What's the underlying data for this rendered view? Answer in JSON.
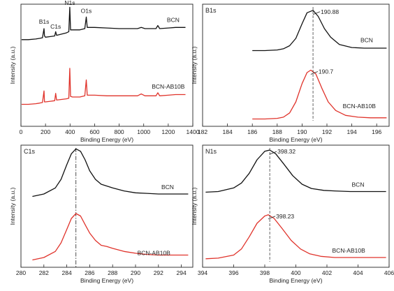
{
  "colors": {
    "black_series": "#111111",
    "red_series": "#e0332b",
    "axis": "#222222"
  },
  "chart_data": [
    {
      "type": "line",
      "panel_label": "",
      "xlabel": "Binding Energy (eV)",
      "ylabel": "Intensity (a.u.)",
      "xlim": [
        0,
        1400
      ],
      "xticks": [
        0,
        200,
        400,
        600,
        800,
        1000,
        1200,
        1400
      ],
      "xtick_labels": [
        "0",
        "200",
        "400",
        "600",
        "800",
        "1000",
        "1200",
        "1400"
      ],
      "ylim": [
        0,
        1
      ],
      "y_ticks_shown": false,
      "series": [
        {
          "name": "BCN",
          "color": "black",
          "x": [
            5,
            60,
            120,
            150,
            175,
            188,
            192,
            200,
            240,
            275,
            283,
            290,
            330,
            370,
            390,
            398,
            404,
            420,
            480,
            520,
            532,
            540,
            600,
            700,
            800,
            950,
            980,
            1010,
            1100,
            1115,
            1130,
            1200,
            1260,
            1340
          ],
          "y": [
            0.71,
            0.71,
            0.715,
            0.72,
            0.725,
            0.8,
            0.74,
            0.73,
            0.735,
            0.74,
            0.775,
            0.745,
            0.755,
            0.765,
            0.775,
            0.975,
            0.79,
            0.79,
            0.79,
            0.8,
            0.895,
            0.81,
            0.81,
            0.805,
            0.8,
            0.8,
            0.81,
            0.8,
            0.8,
            0.825,
            0.8,
            0.805,
            0.81,
            0.81
          ]
        },
        {
          "name": "BCN-AB10B",
          "color": "red",
          "x": [
            5,
            60,
            120,
            150,
            175,
            188,
            192,
            200,
            240,
            275,
            283,
            290,
            330,
            370,
            390,
            398,
            404,
            420,
            480,
            520,
            532,
            540,
            600,
            700,
            800,
            950,
            980,
            1010,
            1100,
            1115,
            1130,
            1200,
            1260,
            1340
          ],
          "y": [
            0.18,
            0.18,
            0.185,
            0.19,
            0.195,
            0.29,
            0.2,
            0.2,
            0.205,
            0.21,
            0.27,
            0.215,
            0.22,
            0.225,
            0.23,
            0.475,
            0.245,
            0.24,
            0.24,
            0.25,
            0.38,
            0.255,
            0.255,
            0.25,
            0.25,
            0.25,
            0.265,
            0.25,
            0.25,
            0.275,
            0.25,
            0.255,
            0.26,
            0.26
          ]
        }
      ],
      "annotations": [
        {
          "text": "N1s",
          "x": 398,
          "y": 0.995
        },
        {
          "text": "O1s",
          "x": 532,
          "y": 0.93
        },
        {
          "text": "B1s",
          "x": 188,
          "y": 0.84
        },
        {
          "text": "C1s",
          "x": 283,
          "y": 0.8
        },
        {
          "text": "BCN",
          "x": 1240,
          "y": 0.855
        },
        {
          "text": "BCN-AB10B",
          "x": 1200,
          "y": 0.31
        }
      ]
    },
    {
      "type": "line",
      "panel_label": "B1s",
      "xlabel": "Binding Energy (eV)",
      "ylabel": "Intensity (a.u.)",
      "xlim": [
        182,
        197
      ],
      "xticks": [
        182,
        184,
        186,
        188,
        190,
        192,
        194,
        196
      ],
      "xtick_labels": [
        "182",
        "184",
        "186",
        "188",
        "190",
        "192",
        "194",
        "196"
      ],
      "ylim": [
        0,
        1
      ],
      "y_ticks_shown": false,
      "series": [
        {
          "name": "BCN",
          "color": "black",
          "x": [
            186.0,
            187.0,
            188.0,
            188.5,
            189.0,
            189.5,
            190.0,
            190.4,
            190.88,
            191.3,
            191.8,
            192.3,
            193.0,
            194.0,
            195.0,
            196.0,
            196.8
          ],
          "y": [
            0.62,
            0.62,
            0.625,
            0.635,
            0.66,
            0.72,
            0.84,
            0.93,
            0.95,
            0.9,
            0.8,
            0.73,
            0.67,
            0.645,
            0.64,
            0.64,
            0.64
          ]
        },
        {
          "name": "BCN-AB10B",
          "color": "red",
          "x": [
            186.0,
            187.0,
            188.0,
            188.5,
            189.0,
            189.5,
            190.0,
            190.4,
            190.7,
            191.1,
            191.6,
            192.1,
            192.7,
            193.5,
            194.5,
            195.5,
            196.8
          ],
          "y": [
            0.06,
            0.06,
            0.065,
            0.075,
            0.11,
            0.2,
            0.35,
            0.44,
            0.46,
            0.43,
            0.31,
            0.2,
            0.13,
            0.09,
            0.075,
            0.07,
            0.07
          ]
        }
      ],
      "annotations": [
        {
          "text": "190.88",
          "x": 190.88,
          "y": 0.95,
          "marker": true
        },
        {
          "text": "190.7",
          "x": 190.7,
          "y": 0.46,
          "marker": true
        },
        {
          "text": "BCN",
          "x": 195.2,
          "y": 0.69
        },
        {
          "text": "BCN-AB10B",
          "x": 194.6,
          "y": 0.15
        }
      ]
    },
    {
      "type": "line",
      "panel_label": "C1s",
      "xlabel": "Binding Energy (eV)",
      "ylabel": "Intensity (a.u.)",
      "xlim": [
        280,
        295
      ],
      "xticks": [
        280,
        282,
        284,
        286,
        288,
        290,
        292,
        294
      ],
      "xtick_labels": [
        "280",
        "282",
        "284",
        "286",
        "288",
        "290",
        "292",
        "294"
      ],
      "ylim": [
        0,
        1
      ],
      "y_ticks_shown": false,
      "series": [
        {
          "name": "BCN",
          "color": "black",
          "x": [
            281.0,
            282.0,
            283.0,
            283.5,
            284.0,
            284.4,
            284.8,
            285.2,
            285.6,
            286.0,
            286.5,
            287.0,
            287.5,
            288.0,
            289.0,
            290.0,
            291.0,
            292.0,
            293.0,
            294.0,
            294.6
          ],
          "y": [
            0.58,
            0.6,
            0.65,
            0.72,
            0.84,
            0.93,
            0.97,
            0.95,
            0.88,
            0.79,
            0.72,
            0.68,
            0.665,
            0.65,
            0.625,
            0.61,
            0.605,
            0.6,
            0.6,
            0.6,
            0.6
          ]
        },
        {
          "name": "BCN-AB10B",
          "color": "red",
          "x": [
            281.0,
            282.0,
            283.0,
            283.5,
            284.0,
            284.4,
            284.8,
            285.2,
            285.6,
            286.0,
            286.5,
            287.0,
            287.5,
            288.0,
            289.0,
            290.0,
            291.0,
            292.0,
            293.0,
            294.0,
            294.6
          ],
          "y": [
            0.06,
            0.08,
            0.13,
            0.2,
            0.31,
            0.4,
            0.44,
            0.42,
            0.35,
            0.28,
            0.22,
            0.18,
            0.17,
            0.155,
            0.13,
            0.115,
            0.105,
            0.1,
            0.1,
            0.1,
            0.1
          ]
        }
      ],
      "annotations": [
        {
          "text": "BCN",
          "x": 292.8,
          "y": 0.64
        },
        {
          "text": "BCN-AB10B",
          "x": 291.6,
          "y": 0.1
        }
      ],
      "guide_x": 284.8
    },
    {
      "type": "line",
      "panel_label": "N1s",
      "xlabel": "Binding Energy (eV)",
      "ylabel": "Intensity (a.u.)",
      "xlim": [
        394,
        406
      ],
      "xticks": [
        394,
        396,
        398,
        400,
        402,
        404,
        406
      ],
      "xtick_labels": [
        "394",
        "396",
        "398",
        "400",
        "402",
        "404",
        "406"
      ],
      "ylim": [
        0,
        1
      ],
      "y_ticks_shown": false,
      "series": [
        {
          "name": "BCN",
          "color": "black",
          "x": [
            394.2,
            395.0,
            396.0,
            396.5,
            397.0,
            397.5,
            398.0,
            398.32,
            398.7,
            399.2,
            399.8,
            400.4,
            401.0,
            401.8,
            402.5,
            403.5,
            404.5,
            405.8
          ],
          "y": [
            0.615,
            0.62,
            0.65,
            0.69,
            0.77,
            0.88,
            0.95,
            0.96,
            0.93,
            0.85,
            0.75,
            0.68,
            0.645,
            0.63,
            0.625,
            0.62,
            0.62,
            0.62
          ]
        },
        {
          "name": "BCN-AB10B",
          "color": "red",
          "x": [
            394.2,
            395.0,
            396.0,
            396.5,
            397.0,
            397.5,
            398.0,
            398.23,
            398.6,
            399.1,
            399.7,
            400.3,
            400.9,
            401.6,
            402.5,
            403.5,
            404.5,
            405.8
          ],
          "y": [
            0.07,
            0.075,
            0.1,
            0.15,
            0.25,
            0.36,
            0.42,
            0.43,
            0.4,
            0.32,
            0.22,
            0.15,
            0.11,
            0.09,
            0.08,
            0.08,
            0.08,
            0.08
          ]
        }
      ],
      "annotations": [
        {
          "text": "398.32",
          "x": 398.32,
          "y": 0.96,
          "marker": true
        },
        {
          "text": "398.23",
          "x": 398.23,
          "y": 0.43,
          "marker": true
        },
        {
          "text": "BCN",
          "x": 404.0,
          "y": 0.66
        },
        {
          "text": "BCN-AB10B",
          "x": 403.4,
          "y": 0.12
        }
      ]
    }
  ]
}
